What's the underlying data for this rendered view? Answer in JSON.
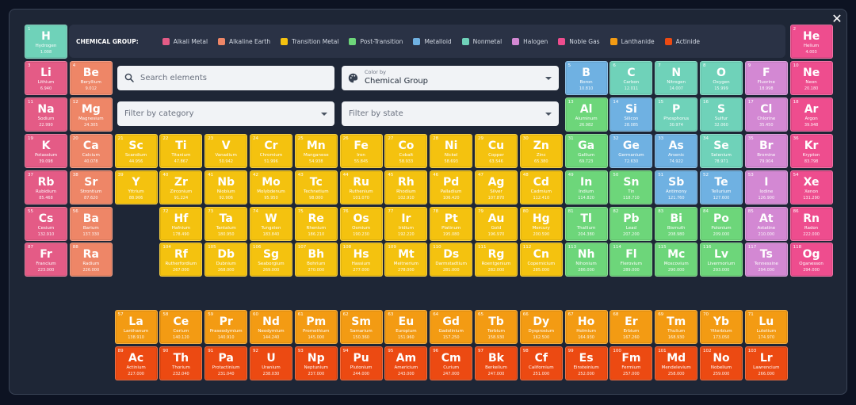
{
  "close_icon_glyph": "✕",
  "legend": {
    "title": "CHEMICAL GROUP:",
    "items": [
      {
        "key": "alkali",
        "label": "Alkali Metal",
        "color": "#e45b86"
      },
      {
        "key": "alkaline",
        "label": "Alkaline Earth",
        "color": "#ee8667"
      },
      {
        "key": "transition",
        "label": "Transition Metal",
        "color": "#f4c20f"
      },
      {
        "key": "post",
        "label": "Post-Transition",
        "color": "#6dd67a"
      },
      {
        "key": "metalloid",
        "label": "Metalloid",
        "color": "#6fb1e2"
      },
      {
        "key": "nonmetal",
        "label": "Nonmetal",
        "color": "#6fd2b9"
      },
      {
        "key": "halogen",
        "label": "Halogen",
        "color": "#d388d3"
      },
      {
        "key": "noble",
        "label": "Noble Gas",
        "color": "#ee4d8e"
      },
      {
        "key": "lanthanide",
        "label": "Lanthanide",
        "color": "#f39b13"
      },
      {
        "key": "actinide",
        "label": "Actinide",
        "color": "#ec4a12"
      }
    ]
  },
  "search": {
    "placeholder": "Search elements",
    "value": ""
  },
  "color_by": {
    "label": "Color by",
    "value": "Chemical Group"
  },
  "filter_category": {
    "placeholder": "Filter by category"
  },
  "filter_state": {
    "placeholder": "Filter by state"
  },
  "elements": [
    {
      "n": 1,
      "s": "H",
      "name": "Hydrogen",
      "mass": "1.008",
      "g": "nonmetal",
      "c": 1,
      "r": 1
    },
    {
      "n": 2,
      "s": "He",
      "name": "Helium",
      "mass": "4.003",
      "g": "noble",
      "c": 18,
      "r": 1
    },
    {
      "n": 3,
      "s": "Li",
      "name": "Lithium",
      "mass": "6.940",
      "g": "alkali",
      "c": 1,
      "r": 2
    },
    {
      "n": 4,
      "s": "Be",
      "name": "Beryllium",
      "mass": "9.012",
      "g": "alkaline",
      "c": 2,
      "r": 2
    },
    {
      "n": 5,
      "s": "B",
      "name": "Boron",
      "mass": "10.810",
      "g": "metalloid",
      "c": 13,
      "r": 2
    },
    {
      "n": 6,
      "s": "C",
      "name": "Carbon",
      "mass": "12.011",
      "g": "nonmetal",
      "c": 14,
      "r": 2
    },
    {
      "n": 7,
      "s": "N",
      "name": "Nitrogen",
      "mass": "14.007",
      "g": "nonmetal",
      "c": 15,
      "r": 2
    },
    {
      "n": 8,
      "s": "O",
      "name": "Oxygen",
      "mass": "15.999",
      "g": "nonmetal",
      "c": 16,
      "r": 2
    },
    {
      "n": 9,
      "s": "F",
      "name": "Fluorine",
      "mass": "18.998",
      "g": "halogen",
      "c": 17,
      "r": 2
    },
    {
      "n": 10,
      "s": "Ne",
      "name": "Neon",
      "mass": "20.180",
      "g": "noble",
      "c": 18,
      "r": 2
    },
    {
      "n": 11,
      "s": "Na",
      "name": "Sodium",
      "mass": "22.990",
      "g": "alkali",
      "c": 1,
      "r": 3
    },
    {
      "n": 12,
      "s": "Mg",
      "name": "Magnesium",
      "mass": "24.305",
      "g": "alkaline",
      "c": 2,
      "r": 3
    },
    {
      "n": 13,
      "s": "Al",
      "name": "Aluminum",
      "mass": "26.982",
      "g": "post",
      "c": 13,
      "r": 3
    },
    {
      "n": 14,
      "s": "Si",
      "name": "Silicon",
      "mass": "28.085",
      "g": "metalloid",
      "c": 14,
      "r": 3
    },
    {
      "n": 15,
      "s": "P",
      "name": "Phosphorus",
      "mass": "30.974",
      "g": "nonmetal",
      "c": 15,
      "r": 3
    },
    {
      "n": 16,
      "s": "S",
      "name": "Sulfur",
      "mass": "32.060",
      "g": "nonmetal",
      "c": 16,
      "r": 3
    },
    {
      "n": 17,
      "s": "Cl",
      "name": "Chlorine",
      "mass": "35.450",
      "g": "halogen",
      "c": 17,
      "r": 3
    },
    {
      "n": 18,
      "s": "Ar",
      "name": "Argon",
      "mass": "39.948",
      "g": "noble",
      "c": 18,
      "r": 3
    },
    {
      "n": 19,
      "s": "K",
      "name": "Potassium",
      "mass": "39.098",
      "g": "alkali",
      "c": 1,
      "r": 4
    },
    {
      "n": 20,
      "s": "Ca",
      "name": "Calcium",
      "mass": "40.078",
      "g": "alkaline",
      "c": 2,
      "r": 4
    },
    {
      "n": 21,
      "s": "Sc",
      "name": "Scandium",
      "mass": "44.956",
      "g": "transition",
      "c": 3,
      "r": 4
    },
    {
      "n": 22,
      "s": "Ti",
      "name": "Titanium",
      "mass": "47.867",
      "g": "transition",
      "c": 4,
      "r": 4
    },
    {
      "n": 23,
      "s": "V",
      "name": "Vanadium",
      "mass": "50.942",
      "g": "transition",
      "c": 5,
      "r": 4
    },
    {
      "n": 24,
      "s": "Cr",
      "name": "Chromium",
      "mass": "51.996",
      "g": "transition",
      "c": 6,
      "r": 4
    },
    {
      "n": 25,
      "s": "Mn",
      "name": "Manganese",
      "mass": "54.938",
      "g": "transition",
      "c": 7,
      "r": 4
    },
    {
      "n": 26,
      "s": "Fe",
      "name": "Iron",
      "mass": "55.845",
      "g": "transition",
      "c": 8,
      "r": 4
    },
    {
      "n": 27,
      "s": "Co",
      "name": "Cobalt",
      "mass": "58.933",
      "g": "transition",
      "c": 9,
      "r": 4
    },
    {
      "n": 28,
      "s": "Ni",
      "name": "Nickel",
      "mass": "58.693",
      "g": "transition",
      "c": 10,
      "r": 4
    },
    {
      "n": 29,
      "s": "Cu",
      "name": "Copper",
      "mass": "63.546",
      "g": "transition",
      "c": 11,
      "r": 4
    },
    {
      "n": 30,
      "s": "Zn",
      "name": "Zinc",
      "mass": "65.380",
      "g": "transition",
      "c": 12,
      "r": 4
    },
    {
      "n": 31,
      "s": "Ga",
      "name": "Gallium",
      "mass": "69.723",
      "g": "post",
      "c": 13,
      "r": 4
    },
    {
      "n": 32,
      "s": "Ge",
      "name": "Germanium",
      "mass": "72.630",
      "g": "metalloid",
      "c": 14,
      "r": 4
    },
    {
      "n": 33,
      "s": "As",
      "name": "Arsenic",
      "mass": "74.922",
      "g": "metalloid",
      "c": 15,
      "r": 4
    },
    {
      "n": 34,
      "s": "Se",
      "name": "Selenium",
      "mass": "78.971",
      "g": "nonmetal",
      "c": 16,
      "r": 4
    },
    {
      "n": 35,
      "s": "Br",
      "name": "Bromine",
      "mass": "79.904",
      "g": "halogen",
      "c": 17,
      "r": 4
    },
    {
      "n": 36,
      "s": "Kr",
      "name": "Krypton",
      "mass": "83.798",
      "g": "noble",
      "c": 18,
      "r": 4
    },
    {
      "n": 37,
      "s": "Rb",
      "name": "Rubidium",
      "mass": "85.468",
      "g": "alkali",
      "c": 1,
      "r": 5
    },
    {
      "n": 38,
      "s": "Sr",
      "name": "Strontium",
      "mass": "87.620",
      "g": "alkaline",
      "c": 2,
      "r": 5
    },
    {
      "n": 39,
      "s": "Y",
      "name": "Yttrium",
      "mass": "88.906",
      "g": "transition",
      "c": 3,
      "r": 5
    },
    {
      "n": 40,
      "s": "Zr",
      "name": "Zirconium",
      "mass": "91.224",
      "g": "transition",
      "c": 4,
      "r": 5
    },
    {
      "n": 41,
      "s": "Nb",
      "name": "Niobium",
      "mass": "92.906",
      "g": "transition",
      "c": 5,
      "r": 5
    },
    {
      "n": 42,
      "s": "Mo",
      "name": "Molybdenum",
      "mass": "95.950",
      "g": "transition",
      "c": 6,
      "r": 5
    },
    {
      "n": 43,
      "s": "Tc",
      "name": "Technetium",
      "mass": "98.000",
      "g": "transition",
      "c": 7,
      "r": 5
    },
    {
      "n": 44,
      "s": "Ru",
      "name": "Ruthenium",
      "mass": "101.070",
      "g": "transition",
      "c": 8,
      "r": 5
    },
    {
      "n": 45,
      "s": "Rh",
      "name": "Rhodium",
      "mass": "102.910",
      "g": "transition",
      "c": 9,
      "r": 5
    },
    {
      "n": 46,
      "s": "Pd",
      "name": "Palladium",
      "mass": "106.420",
      "g": "transition",
      "c": 10,
      "r": 5
    },
    {
      "n": 47,
      "s": "Ag",
      "name": "Silver",
      "mass": "107.870",
      "g": "transition",
      "c": 11,
      "r": 5
    },
    {
      "n": 48,
      "s": "Cd",
      "name": "Cadmium",
      "mass": "112.410",
      "g": "transition",
      "c": 12,
      "r": 5
    },
    {
      "n": 49,
      "s": "In",
      "name": "Indium",
      "mass": "114.820",
      "g": "post",
      "c": 13,
      "r": 5
    },
    {
      "n": 50,
      "s": "Sn",
      "name": "Tin",
      "mass": "118.710",
      "g": "post",
      "c": 14,
      "r": 5
    },
    {
      "n": 51,
      "s": "Sb",
      "name": "Antimony",
      "mass": "121.760",
      "g": "metalloid",
      "c": 15,
      "r": 5
    },
    {
      "n": 52,
      "s": "Te",
      "name": "Tellurium",
      "mass": "127.600",
      "g": "metalloid",
      "c": 16,
      "r": 5
    },
    {
      "n": 53,
      "s": "I",
      "name": "Iodine",
      "mass": "126.900",
      "g": "halogen",
      "c": 17,
      "r": 5
    },
    {
      "n": 54,
      "s": "Xe",
      "name": "Xenon",
      "mass": "131.290",
      "g": "noble",
      "c": 18,
      "r": 5
    },
    {
      "n": 55,
      "s": "Cs",
      "name": "Cesium",
      "mass": "132.910",
      "g": "alkali",
      "c": 1,
      "r": 6
    },
    {
      "n": 56,
      "s": "Ba",
      "name": "Barium",
      "mass": "137.330",
      "g": "alkaline",
      "c": 2,
      "r": 6
    },
    {
      "n": 72,
      "s": "Hf",
      "name": "Hafnium",
      "mass": "178.490",
      "g": "transition",
      "c": 4,
      "r": 6
    },
    {
      "n": 73,
      "s": "Ta",
      "name": "Tantalum",
      "mass": "180.950",
      "g": "transition",
      "c": 5,
      "r": 6
    },
    {
      "n": 74,
      "s": "W",
      "name": "Tungsten",
      "mass": "183.840",
      "g": "transition",
      "c": 6,
      "r": 6
    },
    {
      "n": 75,
      "s": "Re",
      "name": "Rhenium",
      "mass": "186.210",
      "g": "transition",
      "c": 7,
      "r": 6
    },
    {
      "n": 76,
      "s": "Os",
      "name": "Osmium",
      "mass": "190.230",
      "g": "transition",
      "c": 8,
      "r": 6
    },
    {
      "n": 77,
      "s": "Ir",
      "name": "Iridium",
      "mass": "192.220",
      "g": "transition",
      "c": 9,
      "r": 6
    },
    {
      "n": 78,
      "s": "Pt",
      "name": "Platinum",
      "mass": "195.080",
      "g": "transition",
      "c": 10,
      "r": 6
    },
    {
      "n": 79,
      "s": "Au",
      "name": "Gold",
      "mass": "196.970",
      "g": "transition",
      "c": 11,
      "r": 6
    },
    {
      "n": 80,
      "s": "Hg",
      "name": "Mercury",
      "mass": "200.590",
      "g": "transition",
      "c": 12,
      "r": 6
    },
    {
      "n": 81,
      "s": "Tl",
      "name": "Thallium",
      "mass": "204.380",
      "g": "post",
      "c": 13,
      "r": 6
    },
    {
      "n": 82,
      "s": "Pb",
      "name": "Lead",
      "mass": "207.200",
      "g": "post",
      "c": 14,
      "r": 6
    },
    {
      "n": 83,
      "s": "Bi",
      "name": "Bismuth",
      "mass": "208.980",
      "g": "post",
      "c": 15,
      "r": 6
    },
    {
      "n": 84,
      "s": "Po",
      "name": "Polonium",
      "mass": "209.000",
      "g": "post",
      "c": 16,
      "r": 6
    },
    {
      "n": 85,
      "s": "At",
      "name": "Astatine",
      "mass": "210.000",
      "g": "halogen",
      "c": 17,
      "r": 6
    },
    {
      "n": 86,
      "s": "Rn",
      "name": "Radon",
      "mass": "222.000",
      "g": "noble",
      "c": 18,
      "r": 6
    },
    {
      "n": 87,
      "s": "Fr",
      "name": "Francium",
      "mass": "223.000",
      "g": "alkali",
      "c": 1,
      "r": 7
    },
    {
      "n": 88,
      "s": "Ra",
      "name": "Radium",
      "mass": "226.000",
      "g": "alkaline",
      "c": 2,
      "r": 7
    },
    {
      "n": 104,
      "s": "Rf",
      "name": "Rutherfordium",
      "mass": "267.000",
      "g": "transition",
      "c": 4,
      "r": 7
    },
    {
      "n": 105,
      "s": "Db",
      "name": "Dubnium",
      "mass": "268.000",
      "g": "transition",
      "c": 5,
      "r": 7
    },
    {
      "n": 106,
      "s": "Sg",
      "name": "Seaborgium",
      "mass": "269.000",
      "g": "transition",
      "c": 6,
      "r": 7
    },
    {
      "n": 107,
      "s": "Bh",
      "name": "Bohrium",
      "mass": "270.000",
      "g": "transition",
      "c": 7,
      "r": 7
    },
    {
      "n": 108,
      "s": "Hs",
      "name": "Hassium",
      "mass": "277.000",
      "g": "transition",
      "c": 8,
      "r": 7
    },
    {
      "n": 109,
      "s": "Mt",
      "name": "Meitnerium",
      "mass": "278.000",
      "g": "transition",
      "c": 9,
      "r": 7
    },
    {
      "n": 110,
      "s": "Ds",
      "name": "Darmstadtium",
      "mass": "281.000",
      "g": "transition",
      "c": 10,
      "r": 7
    },
    {
      "n": 111,
      "s": "Rg",
      "name": "Roentgenium",
      "mass": "282.000",
      "g": "transition",
      "c": 11,
      "r": 7
    },
    {
      "n": 112,
      "s": "Cn",
      "name": "Copernicium",
      "mass": "285.000",
      "g": "transition",
      "c": 12,
      "r": 7
    },
    {
      "n": 113,
      "s": "Nh",
      "name": "Nihonium",
      "mass": "286.000",
      "g": "post",
      "c": 13,
      "r": 7
    },
    {
      "n": 114,
      "s": "Fl",
      "name": "Flerovium",
      "mass": "289.000",
      "g": "post",
      "c": 14,
      "r": 7
    },
    {
      "n": 115,
      "s": "Mc",
      "name": "Moscovium",
      "mass": "290.000",
      "g": "post",
      "c": 15,
      "r": 7
    },
    {
      "n": 116,
      "s": "Lv",
      "name": "Livermorium",
      "mass": "293.000",
      "g": "post",
      "c": 16,
      "r": 7
    },
    {
      "n": 117,
      "s": "Ts",
      "name": "Tennessine",
      "mass": "294.000",
      "g": "halogen",
      "c": 17,
      "r": 7
    },
    {
      "n": 118,
      "s": "Og",
      "name": "Oganesson",
      "mass": "294.000",
      "g": "noble",
      "c": 18,
      "r": 7
    },
    {
      "n": 57,
      "s": "La",
      "name": "Lanthanum",
      "mass": "138.910",
      "g": "lanthanide",
      "c": 3,
      "r": 9
    },
    {
      "n": 58,
      "s": "Ce",
      "name": "Cerium",
      "mass": "140.120",
      "g": "lanthanide",
      "c": 4,
      "r": 9
    },
    {
      "n": 59,
      "s": "Pr",
      "name": "Praseodymium",
      "mass": "140.910",
      "g": "lanthanide",
      "c": 5,
      "r": 9
    },
    {
      "n": 60,
      "s": "Nd",
      "name": "Neodymium",
      "mass": "144.240",
      "g": "lanthanide",
      "c": 6,
      "r": 9
    },
    {
      "n": 61,
      "s": "Pm",
      "name": "Promethium",
      "mass": "145.000",
      "g": "lanthanide",
      "c": 7,
      "r": 9
    },
    {
      "n": 62,
      "s": "Sm",
      "name": "Samarium",
      "mass": "150.360",
      "g": "lanthanide",
      "c": 8,
      "r": 9
    },
    {
      "n": 63,
      "s": "Eu",
      "name": "Europium",
      "mass": "151.960",
      "g": "lanthanide",
      "c": 9,
      "r": 9
    },
    {
      "n": 64,
      "s": "Gd",
      "name": "Gadolinium",
      "mass": "157.250",
      "g": "lanthanide",
      "c": 10,
      "r": 9
    },
    {
      "n": 65,
      "s": "Tb",
      "name": "Terbium",
      "mass": "158.930",
      "g": "lanthanide",
      "c": 11,
      "r": 9
    },
    {
      "n": 66,
      "s": "Dy",
      "name": "Dysprosium",
      "mass": "162.500",
      "g": "lanthanide",
      "c": 12,
      "r": 9
    },
    {
      "n": 67,
      "s": "Ho",
      "name": "Holmium",
      "mass": "164.930",
      "g": "lanthanide",
      "c": 13,
      "r": 9
    },
    {
      "n": 68,
      "s": "Er",
      "name": "Erbium",
      "mass": "167.260",
      "g": "lanthanide",
      "c": 14,
      "r": 9
    },
    {
      "n": 69,
      "s": "Tm",
      "name": "Thulium",
      "mass": "168.930",
      "g": "lanthanide",
      "c": 15,
      "r": 9
    },
    {
      "n": 70,
      "s": "Yb",
      "name": "Ytterbium",
      "mass": "173.050",
      "g": "lanthanide",
      "c": 16,
      "r": 9
    },
    {
      "n": 71,
      "s": "Lu",
      "name": "Lutetium",
      "mass": "174.970",
      "g": "lanthanide",
      "c": 17,
      "r": 9
    },
    {
      "n": 89,
      "s": "Ac",
      "name": "Actinium",
      "mass": "227.000",
      "g": "actinide",
      "c": 3,
      "r": 10
    },
    {
      "n": 90,
      "s": "Th",
      "name": "Thorium",
      "mass": "232.040",
      "g": "actinide",
      "c": 4,
      "r": 10
    },
    {
      "n": 91,
      "s": "Pa",
      "name": "Protactinium",
      "mass": "231.040",
      "g": "actinide",
      "c": 5,
      "r": 10
    },
    {
      "n": 92,
      "s": "U",
      "name": "Uranium",
      "mass": "238.030",
      "g": "actinide",
      "c": 6,
      "r": 10
    },
    {
      "n": 93,
      "s": "Np",
      "name": "Neptunium",
      "mass": "237.000",
      "g": "actinide",
      "c": 7,
      "r": 10
    },
    {
      "n": 94,
      "s": "Pu",
      "name": "Plutonium",
      "mass": "244.000",
      "g": "actinide",
      "c": 8,
      "r": 10
    },
    {
      "n": 95,
      "s": "Am",
      "name": "Americium",
      "mass": "243.000",
      "g": "actinide",
      "c": 9,
      "r": 10
    },
    {
      "n": 96,
      "s": "Cm",
      "name": "Curium",
      "mass": "247.000",
      "g": "actinide",
      "c": 10,
      "r": 10
    },
    {
      "n": 97,
      "s": "Bk",
      "name": "Berkelium",
      "mass": "247.000",
      "g": "actinide",
      "c": 11,
      "r": 10
    },
    {
      "n": 98,
      "s": "Cf",
      "name": "Californium",
      "mass": "251.000",
      "g": "actinide",
      "c": 12,
      "r": 10
    },
    {
      "n": 99,
      "s": "Es",
      "name": "Einsteinium",
      "mass": "252.000",
      "g": "actinide",
      "c": 13,
      "r": 10
    },
    {
      "n": 100,
      "s": "Fm",
      "name": "Fermium",
      "mass": "257.000",
      "g": "actinide",
      "c": 14,
      "r": 10
    },
    {
      "n": 101,
      "s": "Md",
      "name": "Mendelevium",
      "mass": "258.000",
      "g": "actinide",
      "c": 15,
      "r": 10
    },
    {
      "n": 102,
      "s": "No",
      "name": "Nobelium",
      "mass": "259.000",
      "g": "actinide",
      "c": 16,
      "r": 10
    },
    {
      "n": 103,
      "s": "Lr",
      "name": "Lawrencium",
      "mass": "266.000",
      "g": "actinide",
      "c": 17,
      "r": 10
    }
  ]
}
